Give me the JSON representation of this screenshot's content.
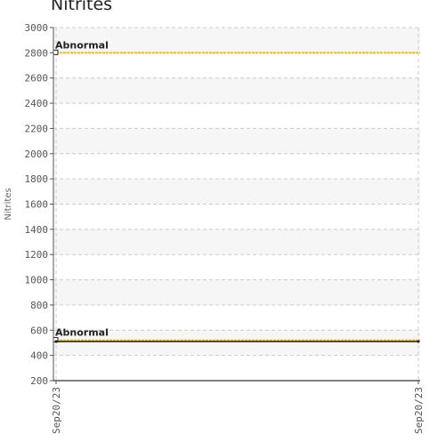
{
  "chart_data": {
    "type": "line",
    "title": "Nitrites",
    "ylabel": "Nitrites",
    "xlabel": "",
    "ylim": [
      200,
      3000
    ],
    "y_ticks": [
      200,
      400,
      600,
      800,
      1000,
      1200,
      1400,
      1600,
      1800,
      2000,
      2200,
      2400,
      2600,
      2800,
      3000
    ],
    "x_ticks": [
      "Sep20/23",
      "Sep20/23"
    ],
    "grid": true,
    "series": [
      {
        "name": "",
        "values": [
          510,
          510
        ],
        "color": "#1a1a1a"
      }
    ],
    "reference_lines": [
      {
        "label": "Abnormal",
        "value": 2800,
        "color": "#f2c200"
      },
      {
        "label": "Abnormal",
        "value": 520,
        "color": "#f2c200"
      }
    ]
  }
}
